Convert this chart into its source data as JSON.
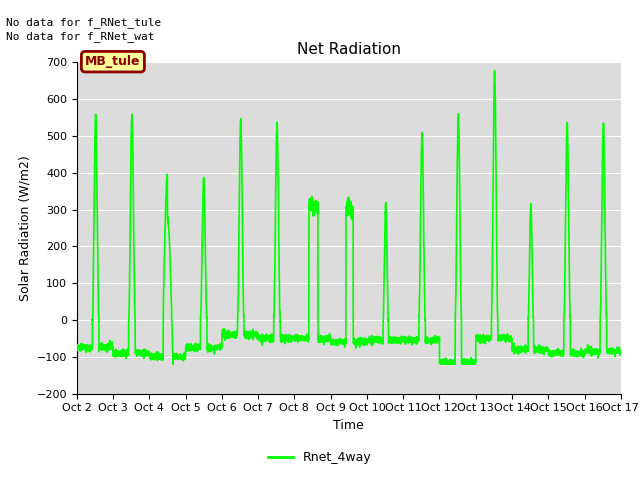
{
  "title": "Net Radiation",
  "ylabel": "Solar Radiation (W/m2)",
  "xlabel": "Time",
  "ylim": [
    -200,
    700
  ],
  "yticks": [
    -200,
    -100,
    0,
    100,
    200,
    300,
    400,
    500,
    600,
    700
  ],
  "line_color": "#00FF00",
  "line_width": 1.2,
  "bg_color": "#DCDCDC",
  "fig_bg": "#FFFFFF",
  "annotation_text1": "No data for f_RNet_tule",
  "annotation_text2": "No data for f_RNet_wat",
  "legend_label": "Rnet_4way",
  "box_label": "MB_tule",
  "box_facecolor": "#FFFF99",
  "box_edgecolor": "#8B0000",
  "box_textcolor": "#8B0000",
  "n_days": 15,
  "start_day": 2,
  "tick_fontsize": 8,
  "label_fontsize": 9,
  "title_fontsize": 11
}
